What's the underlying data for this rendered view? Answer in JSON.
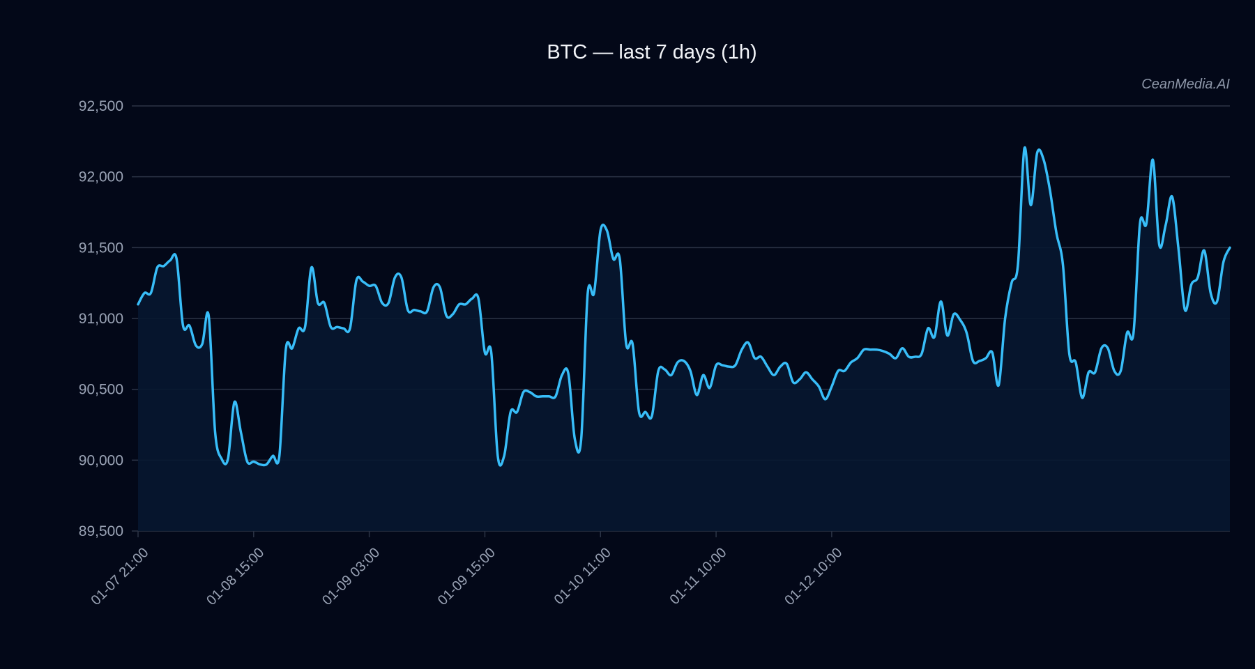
{
  "colors": {
    "background": "#030818",
    "line": "#38bdf8",
    "area": "#071730",
    "grid": "#2c3446",
    "text": "#f2f4f8",
    "tick_text": "#9aa3b5"
  },
  "watermark": "CeanMedia.AI",
  "chart_data": {
    "type": "line",
    "title": "BTC — last 7 days (1h)",
    "xlabel": "",
    "ylabel": "",
    "ylim": [
      89500,
      92500
    ],
    "yticks": [
      89500,
      90000,
      90500,
      91000,
      91500,
      92000,
      92500
    ],
    "ytick_labels": [
      "89,500",
      "90,000",
      "90,500",
      "91,000",
      "91,500",
      "92,000",
      "92,500"
    ],
    "xtick_labels": [
      "01-07 21:00",
      "01-08 15:00",
      "01-09 03:00",
      "01-09 15:00",
      "01-10 11:00",
      "01-11 10:00",
      "01-12 10:00"
    ],
    "xtick_index": [
      0,
      18,
      36,
      54,
      72,
      90,
      108
    ],
    "grid": true,
    "legend": "none",
    "series": [
      {
        "values": [
          91100,
          91180,
          91180,
          91360,
          91370,
          91410,
          91420,
          90950,
          90950,
          90810,
          90820,
          91020,
          90200,
          90010,
          90010,
          90410,
          90200,
          89990,
          89990,
          89970,
          89970,
          90030,
          90030,
          90780,
          90790,
          90930,
          90940,
          91360,
          91110,
          91110,
          90940,
          90940,
          90930,
          90930,
          91270,
          91260,
          91230,
          91230,
          91110,
          91110,
          91290,
          91290,
          91060,
          91060,
          91050,
          91050,
          91220,
          91220,
          91020,
          91030,
          91100,
          91100,
          91140,
          91140,
          90760,
          90760,
          90030,
          90030,
          90340,
          90340,
          90480,
          90480,
          90450,
          90450,
          90450,
          90450,
          90600,
          90610,
          90150,
          90150,
          91170,
          91180,
          91620,
          91620,
          91420,
          91420,
          90820,
          90820,
          90340,
          90340,
          90310,
          90630,
          90640,
          90600,
          90690,
          90700,
          90630,
          90460,
          90600,
          90510,
          90670,
          90670,
          90660,
          90670,
          90780,
          90830,
          90720,
          90730,
          90660,
          90600,
          90660,
          90680,
          90550,
          90570,
          90620,
          90570,
          90520,
          90430,
          90520,
          90630,
          90630,
          90690,
          90720,
          90780,
          90780,
          90780,
          90770,
          90750,
          90720,
          90790,
          90730,
          90730,
          90750,
          90930,
          90870,
          91120,
          90880,
          91030,
          90990,
          90900,
          90700,
          90700,
          90720,
          90760,
          90530,
          91000,
          91250,
          91380,
          92200,
          91800,
          92170,
          92120,
          91900,
          91600,
          91380,
          90750,
          90690,
          90440,
          90620,
          90620,
          90790,
          90790,
          90630,
          90630,
          90900,
          90900,
          91670,
          91670,
          92120,
          91520,
          91660,
          91860,
          91490,
          91060,
          91240,
          91290,
          91480,
          91180,
          91120,
          91400,
          91500
        ]
      }
    ]
  }
}
